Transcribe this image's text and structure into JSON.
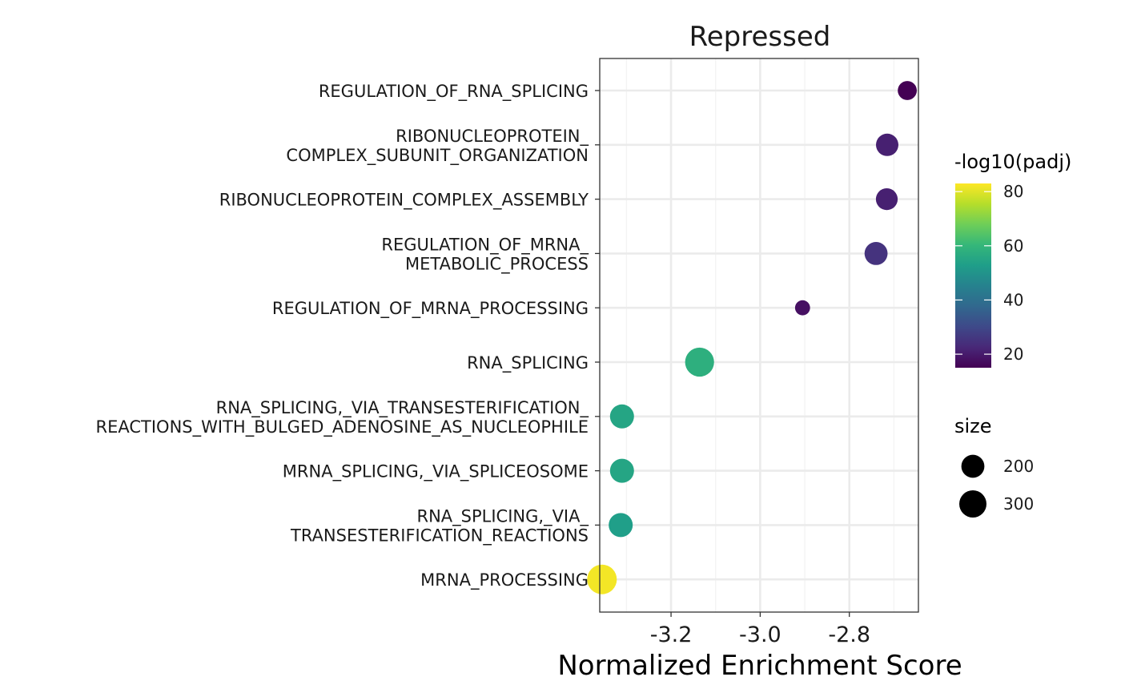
{
  "chart_data": {
    "type": "scatter",
    "title": "Repressed",
    "xlabel": "Normalized Enrichment Score",
    "ylabel": "",
    "xlim": [
      -3.36,
      -2.645
    ],
    "xticks": [
      -3.2,
      -3.0,
      -2.8
    ],
    "xtick_labels": [
      "-3.2",
      "-3.0",
      "-2.8"
    ],
    "grid": true,
    "points": [
      {
        "pathway": [
          "REGULATION_OF_RNA_SPLICING"
        ],
        "nes": -2.67,
        "padj_log10": 15,
        "size": 120
      },
      {
        "pathway": [
          "RIBONUCLEOPROTEIN_",
          "COMPLEX_SUBUNIT_ORGANIZATION"
        ],
        "nes": -2.715,
        "padj_log10": 21,
        "size": 185
      },
      {
        "pathway": [
          "RIBONUCLEOPROTEIN_COMPLEX_ASSEMBLY"
        ],
        "nes": -2.716,
        "padj_log10": 21,
        "size": 170
      },
      {
        "pathway": [
          "REGULATION_OF_MRNA_",
          "METABOLIC_PROCESS"
        ],
        "nes": -2.74,
        "padj_log10": 25,
        "size": 200
      },
      {
        "pathway": [
          "REGULATION_OF_MRNA_PROCESSING"
        ],
        "nes": -2.905,
        "padj_log10": 18,
        "size": 60
      },
      {
        "pathway": [
          "RNA_SPLICING"
        ],
        "nes": -3.136,
        "padj_log10": 58,
        "size": 350
      },
      {
        "pathway": [
          "RNA_SPLICING,_VIA_TRANSESTERIFICATION_",
          "REACTIONS_WITH_BULGED_ADENOSINE_AS_NUCLEOPHILE"
        ],
        "nes": -3.31,
        "padj_log10": 55,
        "size": 220
      },
      {
        "pathway": [
          "MRNA_SPLICING,_VIA_SPLICEOSOME"
        ],
        "nes": -3.31,
        "padj_log10": 55,
        "size": 220
      },
      {
        "pathway": [
          "RNA_SPLICING,_VIA_",
          "TRANSESTERIFICATION_REACTIONS"
        ],
        "nes": -3.313,
        "padj_log10": 53,
        "size": 220
      },
      {
        "pathway": [
          "MRNA_PROCESSING"
        ],
        "nes": -3.355,
        "padj_log10": 82,
        "size": 370
      }
    ],
    "color_legend": {
      "title": "-log10(padj)",
      "breaks": [
        20,
        40,
        60,
        80
      ],
      "range": [
        15,
        83
      ],
      "palette": [
        "#440154",
        "#482878",
        "#3e4989",
        "#31688e",
        "#26828e",
        "#1f9e89",
        "#35b779",
        "#6ece58",
        "#b5de2b",
        "#fde725"
      ]
    },
    "size_legend": {
      "title": "size",
      "breaks": [
        200,
        300
      ]
    },
    "legend_position": "right"
  }
}
